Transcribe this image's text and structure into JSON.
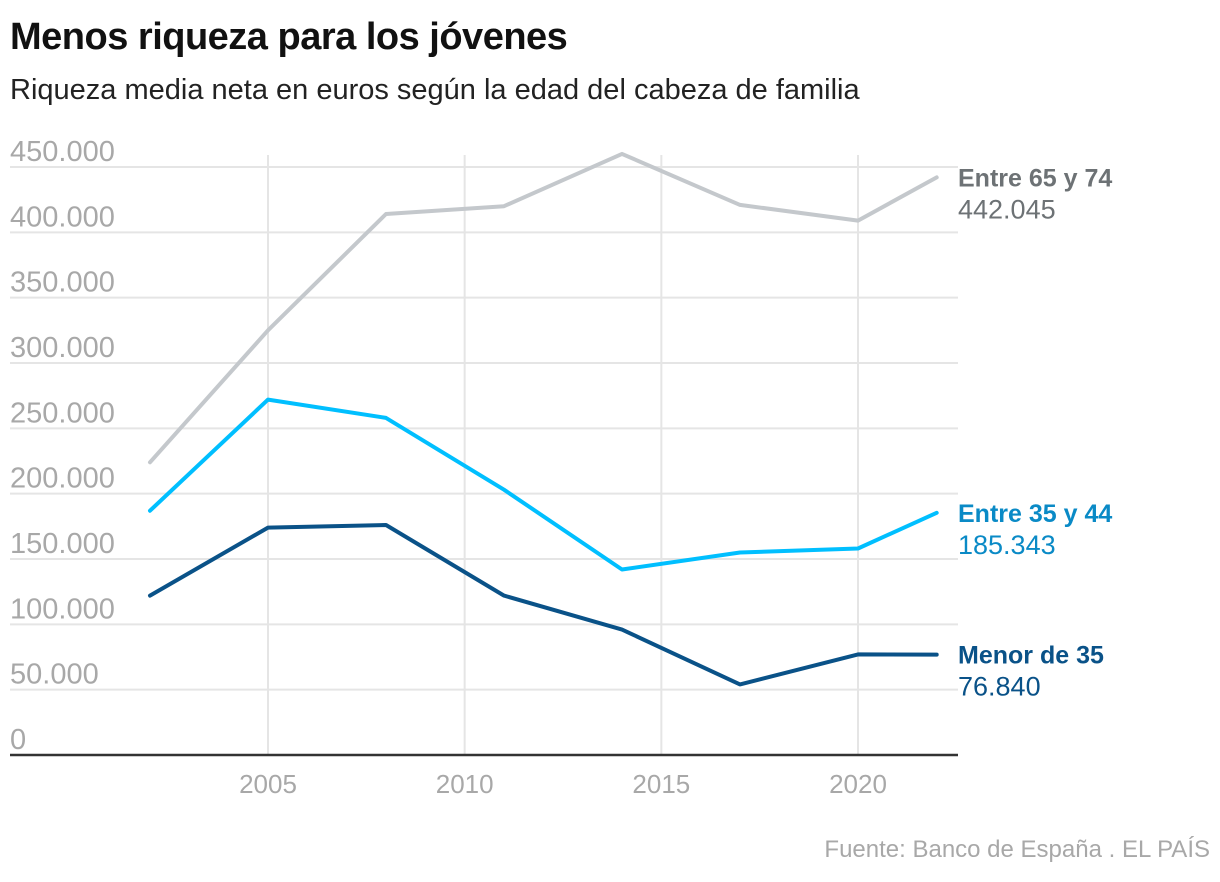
{
  "chart_data": {
    "type": "line",
    "title": "Menos riqueza para los jóvenes",
    "subtitle": "Riqueza media neta en euros según la edad del cabeza de familia",
    "xlabel": "",
    "ylabel": "",
    "x": [
      2002,
      2005,
      2008,
      2011,
      2014,
      2017,
      2020,
      2022
    ],
    "xticks": [
      2005,
      2010,
      2015,
      2020
    ],
    "xtick_labels": [
      "2005",
      "2010",
      "2015",
      "2020"
    ],
    "xlim": [
      1998.9,
      2023.5
    ],
    "ylim": [
      0,
      450000
    ],
    "yticks": [
      0,
      50000,
      100000,
      150000,
      200000,
      250000,
      300000,
      350000,
      400000,
      450000
    ],
    "ytick_labels": [
      "0",
      "50.000",
      "100.000",
      "150.000",
      "200.000",
      "250.000",
      "300.000",
      "350.000",
      "400.000",
      "450.000"
    ],
    "grid": true,
    "legend": "direct labels at right end of lines",
    "series": [
      {
        "name": "Entre 65 y 74",
        "end_label": "442.045",
        "color": "#c4c8cc",
        "label_color": "#6d7275",
        "values": [
          224000,
          325000,
          414000,
          420000,
          460000,
          421000,
          409000,
          442045
        ]
      },
      {
        "name": "Entre 35 y 44",
        "end_label": "185.343",
        "color": "#00bfff",
        "label_color": "#0a8ac6",
        "values": [
          187000,
          272000,
          258000,
          203000,
          142000,
          155000,
          158000,
          185343
        ]
      },
      {
        "name": "Menor de 35",
        "end_label": "76.840",
        "color": "#0a5288",
        "label_color": "#0a5288",
        "values": [
          122000,
          174000,
          176000,
          122000,
          96000,
          54000,
          77000,
          76840
        ]
      }
    ],
    "source": "Fuente: Banco de España . EL PAÍS"
  },
  "colors": {
    "grid": "#e5e5e5",
    "axis": "#333333",
    "tick_text": "#a8a8a8"
  }
}
